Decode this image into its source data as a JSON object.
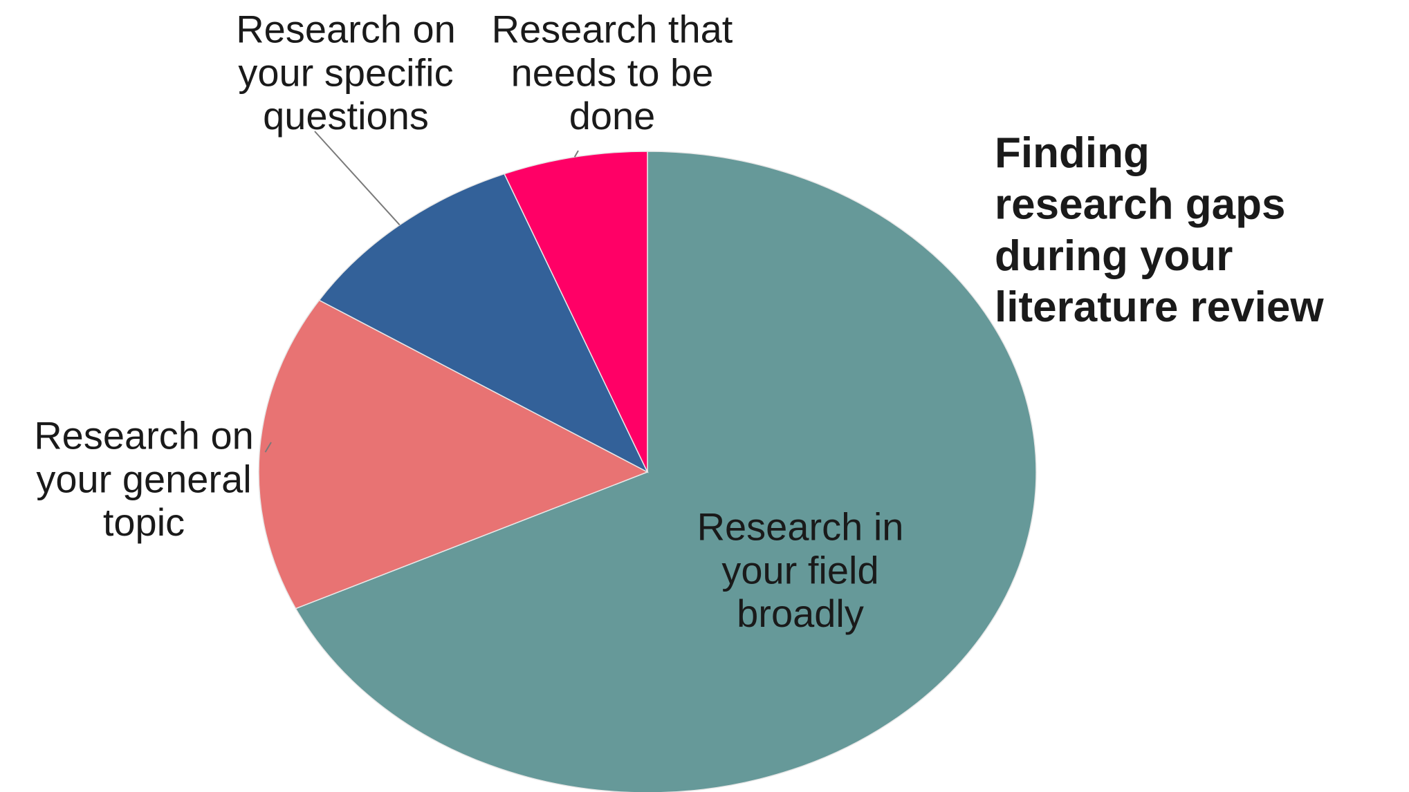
{
  "chart_data": {
    "type": "pie",
    "title": "Finding research gaps during your literature review",
    "title_lines": [
      "Finding",
      "research gaps",
      "during your",
      "literature review"
    ],
    "start_angle_deg": 0,
    "direction": "clockwise",
    "legend": "none",
    "slices": [
      {
        "label": "Research in your field broadly",
        "label_lines": [
          "Research in",
          "your field",
          "broadly"
        ],
        "value": 68,
        "color": "#669999"
      },
      {
        "label": "Research on your general topic",
        "label_lines": [
          "Research on",
          "your general",
          "topic"
        ],
        "value": 16,
        "color": "#e87373"
      },
      {
        "label": "Research on your specific questions",
        "label_lines": [
          "Research on",
          "your specific",
          "questions"
        ],
        "value": 10,
        "color": "#336199"
      },
      {
        "label": "Research that needs to be done",
        "label_lines": [
          "Research that",
          "needs to be",
          "done"
        ],
        "value": 6,
        "color": "#ff0066"
      }
    ]
  }
}
